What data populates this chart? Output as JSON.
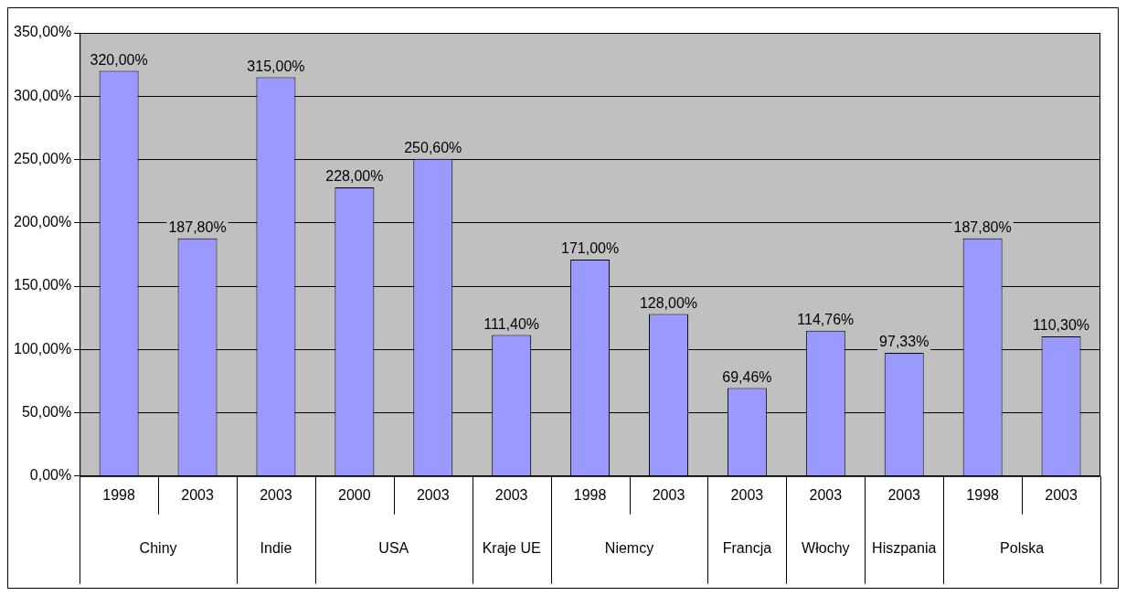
{
  "chart_data": {
    "type": "bar",
    "categories": [
      "1998",
      "2003",
      "2003",
      "2000",
      "2003",
      "2003",
      "1998",
      "2003",
      "2003",
      "2003",
      "2003",
      "1998",
      "2003"
    ],
    "values": [
      320,
      187.8,
      315,
      228,
      250.6,
      111.4,
      171,
      128,
      69.46,
      114.76,
      97.33,
      187.8,
      110.3
    ],
    "value_labels": [
      "320,00%",
      "187,80%",
      "315,00%",
      "228,00%",
      "250,60%",
      "111,40%",
      "171,00%",
      "128,00%",
      "69,46%",
      "114,76%",
      "97,33%",
      "187,80%",
      "110,30%"
    ],
    "color": "#9999ff",
    "ylim": [
      0,
      350
    ],
    "yticks": [
      {
        "value": 0,
        "label": "0,00%"
      },
      {
        "value": 50,
        "label": "50,00%"
      },
      {
        "value": 100,
        "label": "100,00%"
      },
      {
        "value": 150,
        "label": "150,00%"
      },
      {
        "value": 200,
        "label": "200,00%"
      },
      {
        "value": 250,
        "label": "250,00%"
      },
      {
        "value": 300,
        "label": "300,00%"
      },
      {
        "value": 350,
        "label": "350,00%"
      }
    ],
    "grid": "y",
    "legend": false,
    "annotations": [
      "Chiny",
      "Indie",
      "USA",
      "Kraje UE",
      "Niemcy",
      "Francja",
      "Włochy",
      "Hiszpania",
      "Polska"
    ]
  }
}
